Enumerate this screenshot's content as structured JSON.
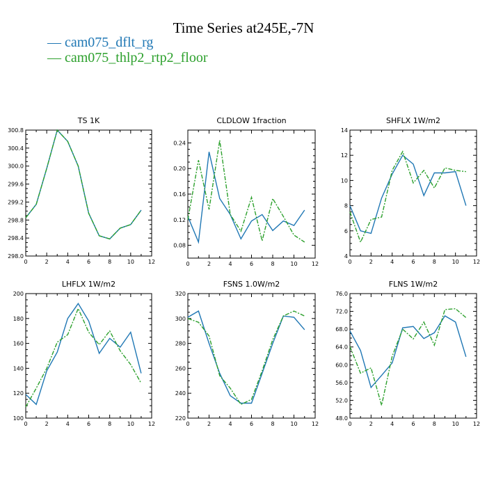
{
  "title": "Time Series at245E,-7N",
  "legend": [
    {
      "name": "cam075_dflt_rg",
      "color": "#1f77b4"
    },
    {
      "name": "cam075_thlp2_rtp2_floor",
      "color": "#2ca02c"
    }
  ],
  "chart_data": [
    {
      "type": "line",
      "title": "TS   1K",
      "x": [
        0,
        1,
        2,
        3,
        4,
        5,
        6,
        7,
        8,
        9,
        10,
        11
      ],
      "xlim": [
        0,
        12
      ],
      "xticks": [
        "0",
        "2",
        "4",
        "6",
        "8",
        "10",
        "12"
      ],
      "ylim": [
        298.0,
        300.8
      ],
      "yticks": [
        "298.0",
        "298.4",
        "298.8",
        "299.2",
        "299.6",
        "300.0",
        "300.4",
        "300.8"
      ],
      "series": [
        {
          "name": "cam075_dflt_rg",
          "values": [
            298.85,
            299.15,
            299.95,
            300.8,
            300.55,
            300.0,
            298.95,
            298.45,
            298.38,
            298.62,
            298.7,
            299.02
          ]
        },
        {
          "name": "cam075_thlp2_rtp2_floor",
          "values": [
            298.85,
            299.15,
            299.95,
            300.8,
            300.55,
            300.0,
            298.95,
            298.45,
            298.38,
            298.62,
            298.7,
            299.02
          ]
        }
      ]
    },
    {
      "type": "line",
      "title": "CLDLOW   1fraction",
      "x": [
        0,
        1,
        2,
        3,
        4,
        5,
        6,
        7,
        8,
        9,
        10,
        11
      ],
      "xlim": [
        0,
        12
      ],
      "xticks": [
        "0",
        "2",
        "4",
        "6",
        "8",
        "10",
        "12"
      ],
      "ylim": [
        0.06,
        0.26
      ],
      "yticks": [
        "0.08",
        "0.12",
        "0.16",
        "0.20",
        "0.24"
      ],
      "series": [
        {
          "name": "cam075_dflt_rg",
          "values": [
            0.125,
            0.085,
            0.226,
            0.153,
            0.128,
            0.09,
            0.118,
            0.128,
            0.103,
            0.118,
            0.111,
            0.135
          ]
        },
        {
          "name": "cam075_thlp2_rtp2_floor",
          "values": [
            0.12,
            0.213,
            0.136,
            0.244,
            0.128,
            0.102,
            0.155,
            0.087,
            0.153,
            0.125,
            0.096,
            0.085
          ]
        }
      ]
    },
    {
      "type": "line",
      "title": "SHFLX   1W/m2",
      "x": [
        0,
        1,
        2,
        3,
        4,
        5,
        6,
        7,
        8,
        9,
        10,
        11
      ],
      "xlim": [
        0,
        12
      ],
      "xticks": [
        "0",
        "2",
        "4",
        "6",
        "8",
        "10",
        "12"
      ],
      "ylim": [
        4,
        14
      ],
      "yticks": [
        "4",
        "6",
        "8",
        "10",
        "12",
        "14"
      ],
      "series": [
        {
          "name": "cam075_dflt_rg",
          "values": [
            8.0,
            6.0,
            5.8,
            8.6,
            10.5,
            12.0,
            11.3,
            8.8,
            10.6,
            10.6,
            10.7,
            8.0
          ]
        },
        {
          "name": "cam075_thlp2_rtp2_floor",
          "values": [
            7.5,
            5.1,
            6.9,
            7.1,
            10.8,
            12.3,
            9.8,
            10.8,
            9.4,
            11.0,
            10.8,
            10.7
          ]
        }
      ]
    },
    {
      "type": "line",
      "title": "LHFLX   1W/m2",
      "x": [
        0,
        1,
        2,
        3,
        4,
        5,
        6,
        7,
        8,
        9,
        10,
        11
      ],
      "xlim": [
        0,
        12
      ],
      "xticks": [
        "0",
        "2",
        "4",
        "6",
        "8",
        "10",
        "12"
      ],
      "ylim": [
        100,
        200
      ],
      "yticks": [
        "100",
        "120",
        "140",
        "160",
        "180",
        "200"
      ],
      "series": [
        {
          "name": "cam075_dflt_rg",
          "values": [
            119,
            111,
            138,
            153,
            180,
            192,
            178,
            152,
            164,
            157,
            169,
            136
          ]
        },
        {
          "name": "cam075_thlp2_rtp2_floor",
          "values": [
            109,
            124,
            140,
            161,
            167,
            188,
            169,
            159,
            170,
            154,
            143,
            128
          ]
        }
      ]
    },
    {
      "type": "line",
      "title": "FSNS   1.0W/m2",
      "x": [
        0,
        1,
        2,
        3,
        4,
        5,
        6,
        7,
        8,
        9,
        10,
        11
      ],
      "xlim": [
        0,
        12
      ],
      "xticks": [
        "0",
        "2",
        "4",
        "6",
        "8",
        "10",
        "12"
      ],
      "ylim": [
        220,
        320
      ],
      "yticks": [
        "220",
        "240",
        "260",
        "280",
        "300",
        "320"
      ],
      "series": [
        {
          "name": "cam075_dflt_rg",
          "values": [
            301,
            306,
            280,
            256,
            238,
            232,
            232,
            256,
            280,
            302,
            301,
            291
          ]
        },
        {
          "name": "cam075_thlp2_rtp2_floor",
          "values": [
            300,
            297,
            286,
            254,
            244,
            231,
            235,
            258,
            283,
            302,
            306,
            302
          ]
        }
      ]
    },
    {
      "type": "line",
      "title": "FLNS   1W/m2",
      "x": [
        0,
        1,
        2,
        3,
        4,
        5,
        6,
        7,
        8,
        9,
        10,
        11
      ],
      "xlim": [
        0,
        12
      ],
      "xticks": [
        "0",
        "2",
        "4",
        "6",
        "8",
        "10",
        "12"
      ],
      "ylim": [
        48,
        76
      ],
      "yticks": [
        "48.0",
        "52.0",
        "56.0",
        "60.0",
        "64.0",
        "68.0",
        "72.0",
        "76.0"
      ],
      "series": [
        {
          "name": "cam075_dflt_rg",
          "values": [
            67.6,
            63.2,
            54.9,
            57.6,
            60.4,
            68.3,
            68.6,
            65.9,
            67.2,
            71.0,
            69.6,
            61.8
          ]
        },
        {
          "name": "cam075_thlp2_rtp2_floor",
          "values": [
            64.1,
            58.1,
            59.3,
            50.9,
            61.9,
            68.0,
            65.8,
            69.6,
            64.4,
            72.4,
            72.6,
            70.6
          ]
        }
      ]
    }
  ]
}
